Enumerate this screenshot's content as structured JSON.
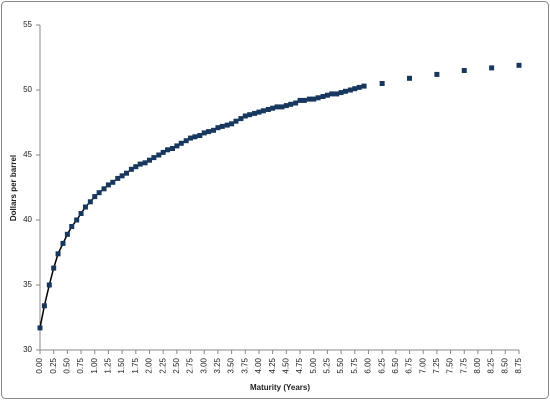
{
  "chart_data": {
    "type": "scatter",
    "x_label": "Maturity (Years)",
    "y_label": "Dollars per barrel",
    "xlim": [
      0,
      8.75
    ],
    "ylim": [
      30,
      55
    ],
    "yticks": [
      30,
      35,
      40,
      45,
      50,
      55
    ],
    "xticks": [
      {
        "value": 0,
        "label": "0.00"
      },
      0.25,
      {
        "value": 0.5,
        "label": "0.50"
      },
      0.75,
      {
        "value": 1,
        "label": "1.00"
      },
      1.25,
      {
        "value": 1.5,
        "label": "1.50"
      },
      1.75,
      {
        "value": 2,
        "label": "2.00"
      },
      2.25,
      {
        "value": 2.5,
        "label": "2.50"
      },
      2.75,
      {
        "value": 3,
        "label": "3.00"
      },
      3.25,
      {
        "value": 3.5,
        "label": "3.50"
      },
      3.75,
      {
        "value": 4,
        "label": "4.00"
      },
      4.25,
      {
        "value": 4.5,
        "label": "4.50"
      },
      4.75,
      {
        "value": 5,
        "label": "5.00"
      },
      5.25,
      {
        "value": 5.5,
        "label": "5.50"
      },
      5.75,
      {
        "value": 6,
        "label": "6.00"
      },
      6.25,
      {
        "value": 6.5,
        "label": "6.50"
      },
      6.75,
      {
        "value": 7,
        "label": "7.00"
      },
      7.25,
      {
        "value": 7.5,
        "label": "7.50"
      },
      7.75,
      {
        "value": 8,
        "label": "8.00"
      },
      8.25,
      {
        "value": 8.5,
        "label": "8.50"
      },
      8.75
    ],
    "grid": false,
    "series": [
      {
        "color": "#17375e",
        "line": true,
        "line_color": "#000000",
        "x": [
          0.0,
          0.08,
          0.17,
          0.25,
          0.33,
          0.42,
          0.5,
          0.58,
          0.67,
          0.75,
          0.83,
          0.92,
          1.0,
          1.08,
          1.17,
          1.25,
          1.33,
          1.42,
          1.5,
          1.58,
          1.67,
          1.75,
          1.83,
          1.92,
          2.0,
          2.08,
          2.17,
          2.25,
          2.33,
          2.42,
          2.5,
          2.58,
          2.67,
          2.75,
          2.83,
          2.92,
          3.0,
          3.08,
          3.17,
          3.25,
          3.33,
          3.42,
          3.5,
          3.58,
          3.67,
          3.75,
          3.83,
          3.92,
          4.0,
          4.08,
          4.17,
          4.25,
          4.33,
          4.42,
          4.5,
          4.58,
          4.67,
          4.75,
          4.83,
          4.92,
          5.0,
          5.08,
          5.17,
          5.25,
          5.33,
          5.42,
          5.5,
          5.58,
          5.67,
          5.75,
          5.83,
          5.92
        ],
        "values": [
          31.7,
          33.4,
          35.0,
          36.3,
          37.4,
          38.2,
          38.9,
          39.5,
          40.0,
          40.5,
          41.0,
          41.4,
          41.8,
          42.1,
          42.4,
          42.7,
          42.9,
          43.2,
          43.4,
          43.6,
          43.9,
          44.1,
          44.3,
          44.4,
          44.6,
          44.8,
          45.0,
          45.2,
          45.4,
          45.5,
          45.7,
          45.9,
          46.1,
          46.3,
          46.4,
          46.5,
          46.7,
          46.8,
          46.9,
          47.1,
          47.2,
          47.3,
          47.4,
          47.6,
          47.8,
          48.0,
          48.1,
          48.2,
          48.3,
          48.4,
          48.5,
          48.6,
          48.7,
          48.7,
          48.8,
          48.9,
          49.0,
          49.2,
          49.2,
          49.3,
          49.3,
          49.4,
          49.5,
          49.6,
          49.7,
          49.7,
          49.8,
          49.9,
          50.0,
          50.1,
          50.2,
          50.3
        ]
      },
      {
        "color": "#17375e",
        "line": false,
        "x": [
          6.25,
          6.75,
          7.25,
          7.75,
          8.25,
          8.75
        ],
        "values": [
          50.5,
          50.9,
          51.2,
          51.5,
          51.7,
          51.9
        ]
      }
    ]
  }
}
